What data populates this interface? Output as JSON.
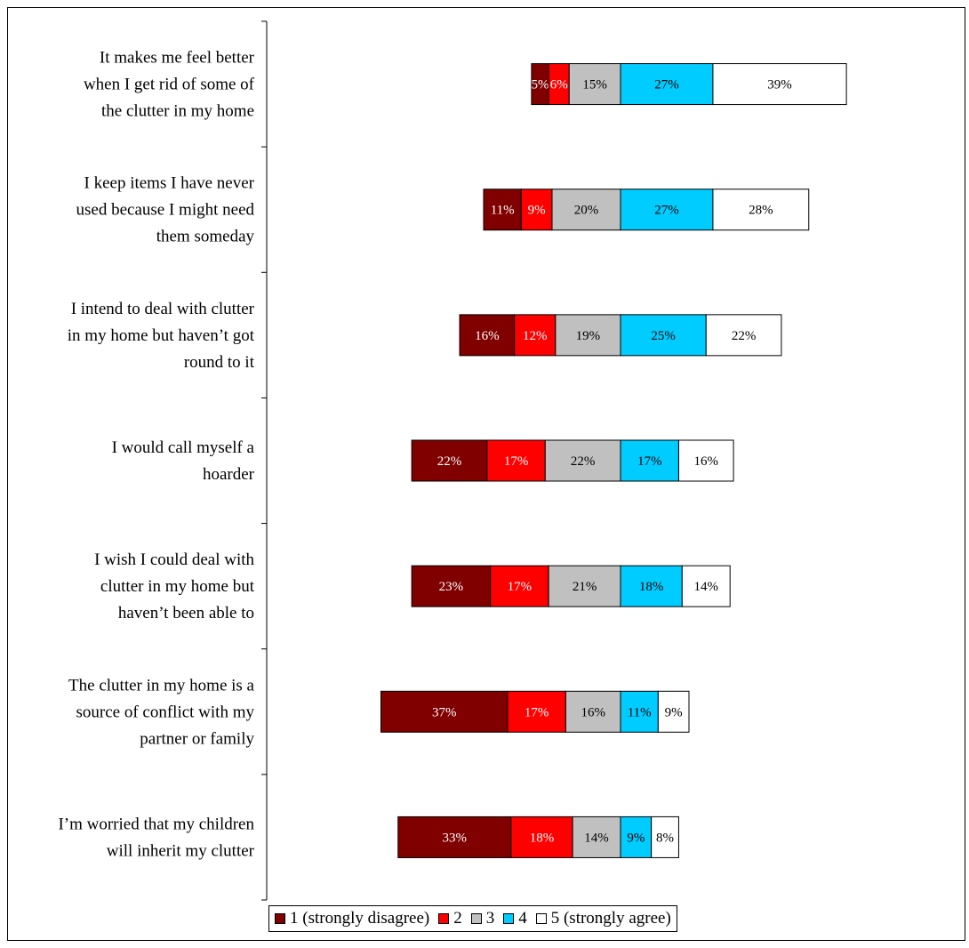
{
  "chart_data": {
    "type": "bar",
    "orientation": "horizontal",
    "stacked": true,
    "diverging": true,
    "categories": [
      [
        "It makes me feel better",
        "when I get rid of some of",
        "the clutter in my home"
      ],
      [
        "I keep items I have never",
        "used because I might need",
        "them someday"
      ],
      [
        "I intend to deal with clutter",
        "in my home but haven’t got",
        "round to it"
      ],
      [
        "I would call myself a",
        "hoarder"
      ],
      [
        "I wish I could deal with",
        "clutter in my home but",
        "haven’t been able to"
      ],
      [
        "The clutter in my home is a",
        "source of conflict with my",
        "partner or family"
      ],
      [
        "I’m worried that my children",
        "will inherit my clutter"
      ]
    ],
    "series": [
      {
        "name": "1 (strongly disagree)",
        "color": "#800000",
        "text_color": "#ffffff",
        "values": [
          5,
          11,
          16,
          22,
          23,
          37,
          33
        ]
      },
      {
        "name": "2",
        "color": "#ff0000",
        "text_color": "#ffffff",
        "values": [
          6,
          9,
          12,
          17,
          17,
          17,
          18
        ]
      },
      {
        "name": "3",
        "color": "#c0c0c0",
        "text_color": "#000000",
        "values": [
          15,
          20,
          19,
          22,
          21,
          16,
          14
        ]
      },
      {
        "name": "4",
        "color": "#00ccff",
        "text_color": "#000000",
        "values": [
          27,
          27,
          25,
          17,
          18,
          11,
          9
        ]
      },
      {
        "name": "5 (strongly agree)",
        "color": "#ffffff",
        "text_color": "#000000",
        "values": [
          39,
          28,
          22,
          16,
          14,
          9,
          8
        ]
      }
    ],
    "value_suffix": "%",
    "grid": false,
    "legend_position": "bottom"
  }
}
